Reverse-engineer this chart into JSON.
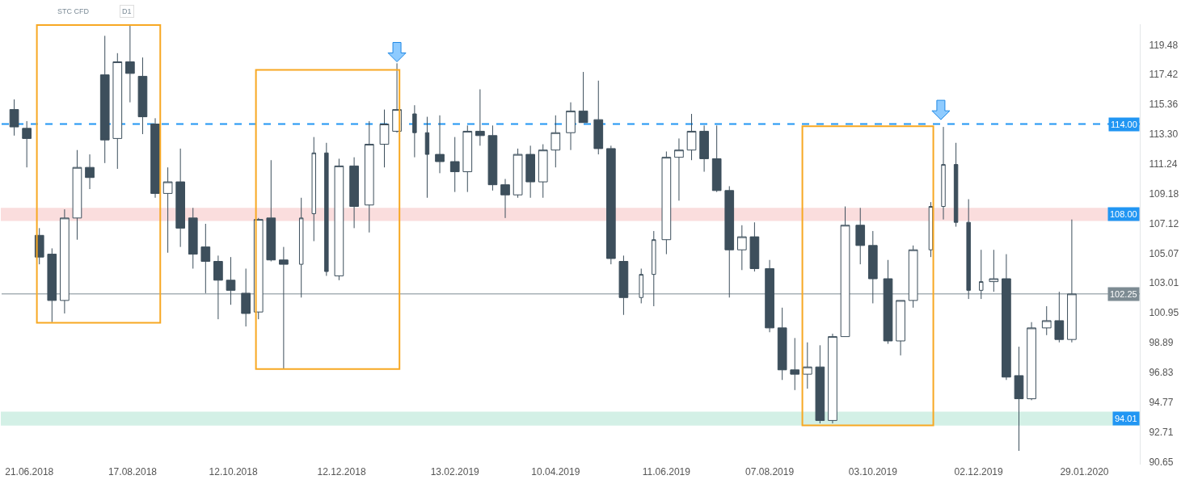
{
  "chart_data": {
    "type": "candlestick",
    "annotations": [
      "STC CFD",
      "D1"
    ],
    "color": "#3d4f5c",
    "x": [
      "2018-06-13",
      "2018-06-20",
      "2018-06-27",
      "2018-07-04",
      "2018-07-11",
      "2018-07-18",
      "2018-07-25",
      "2018-08-02",
      "2018-08-09",
      "2018-08-16",
      "2018-08-23",
      "2018-08-30",
      "2018-09-06",
      "2018-09-13",
      "2018-09-20",
      "2018-09-27",
      "2018-10-04",
      "2018-10-11",
      "2018-10-19",
      "2018-10-26",
      "2018-11-02",
      "2018-11-09",
      "2018-11-19",
      "2018-11-26",
      "2018-12-03",
      "2018-12-11",
      "2018-12-19",
      "2018-12-27",
      "2019-01-04",
      "2019-01-11",
      "2019-01-21",
      "2019-01-28",
      "2019-02-05",
      "2019-02-13",
      "2019-02-20",
      "2019-02-27",
      "2019-03-06",
      "2019-03-13",
      "2019-03-20",
      "2019-03-27",
      "2019-04-03",
      "2019-04-10",
      "2019-04-18",
      "2019-04-25",
      "2019-05-03",
      "2019-05-10",
      "2019-05-17",
      "2019-05-27",
      "2019-06-03",
      "2019-06-11",
      "2019-06-18",
      "2019-06-25",
      "2019-07-02",
      "2019-07-09",
      "2019-07-16",
      "2019-07-23",
      "2019-07-30",
      "2019-08-07",
      "2019-08-14",
      "2019-08-21",
      "2019-08-28",
      "2019-09-04",
      "2019-09-11",
      "2019-09-18",
      "2019-09-26",
      "2019-10-03",
      "2019-10-11",
      "2019-10-18",
      "2019-10-25",
      "2019-11-04",
      "2019-11-11",
      "2019-11-18",
      "2019-11-25",
      "2019-12-02",
      "2019-12-10",
      "2019-12-17",
      "2019-12-24",
      "2019-12-31",
      "2020-01-08",
      "2020-01-15",
      "2020-01-22"
    ],
    "ohlc": [
      [
        115.0,
        115.7,
        113.2,
        113.8
      ],
      [
        113.7,
        114.2,
        111.0,
        113.0
      ],
      [
        106.3,
        106.8,
        104.3,
        104.8
      ],
      [
        105.0,
        105.4,
        100.3,
        101.8
      ],
      [
        101.8,
        108.1,
        100.9,
        107.5
      ],
      [
        107.5,
        112.2,
        106.0,
        111.0
      ],
      [
        111.0,
        111.9,
        109.5,
        110.3
      ],
      [
        117.4,
        120.1,
        111.3,
        112.9
      ],
      [
        113.0,
        118.9,
        110.9,
        118.3
      ],
      [
        118.3,
        120.8,
        115.5,
        117.5
      ],
      [
        117.3,
        118.6,
        113.3,
        114.5
      ],
      [
        114.0,
        114.4,
        108.9,
        109.2
      ],
      [
        109.2,
        111.0,
        105.1,
        110.0
      ],
      [
        110.0,
        112.3,
        105.5,
        106.8
      ],
      [
        107.5,
        108.2,
        104.0,
        105.0
      ],
      [
        105.5,
        107.1,
        102.3,
        104.5
      ],
      [
        104.5,
        104.9,
        100.5,
        103.2
      ],
      [
        103.2,
        104.8,
        101.5,
        102.5
      ],
      [
        102.3,
        104.0,
        100.0,
        100.9
      ],
      [
        101.0,
        107.5,
        100.5,
        107.4
      ],
      [
        107.5,
        111.5,
        104.5,
        104.6
      ],
      [
        104.6,
        105.5,
        97.1,
        104.3
      ],
      [
        104.3,
        108.9,
        102.0,
        107.5
      ],
      [
        107.8,
        113.1,
        105.9,
        112.0
      ],
      [
        112.0,
        112.7,
        103.5,
        103.8
      ],
      [
        103.5,
        111.6,
        103.2,
        111.1
      ],
      [
        111.1,
        111.7,
        106.8,
        108.3
      ],
      [
        108.4,
        114.2,
        106.5,
        112.6
      ],
      [
        112.6,
        115.0,
        111.0,
        114.0
      ],
      [
        113.5,
        118.2,
        113.4,
        115.0
      ],
      [
        114.7,
        115.3,
        111.7,
        113.4
      ],
      [
        113.4,
        114.5,
        108.9,
        111.9
      ],
      [
        111.9,
        114.6,
        110.6,
        111.4
      ],
      [
        111.4,
        113.1,
        109.3,
        110.7
      ],
      [
        110.7,
        113.9,
        109.3,
        113.5
      ],
      [
        113.5,
        116.4,
        112.5,
        113.2
      ],
      [
        113.2,
        113.9,
        109.4,
        109.8
      ],
      [
        109.8,
        110.2,
        107.5,
        109.1
      ],
      [
        109.1,
        112.3,
        108.9,
        111.9
      ],
      [
        111.9,
        112.5,
        108.9,
        110.0
      ],
      [
        110.0,
        112.6,
        108.9,
        112.2
      ],
      [
        112.2,
        114.6,
        111.0,
        113.4
      ],
      [
        113.4,
        115.5,
        112.2,
        114.9
      ],
      [
        114.9,
        117.6,
        114.1,
        114.1
      ],
      [
        114.3,
        117.0,
        111.9,
        112.3
      ],
      [
        112.3,
        112.5,
        104.3,
        104.7
      ],
      [
        104.5,
        104.9,
        100.8,
        102.0
      ],
      [
        102.0,
        104.0,
        101.6,
        103.6
      ],
      [
        103.6,
        106.6,
        101.4,
        106.0
      ],
      [
        106.0,
        112.1,
        105.0,
        111.7
      ],
      [
        111.7,
        113.0,
        108.7,
        112.2
      ],
      [
        112.2,
        114.7,
        111.5,
        113.5
      ],
      [
        113.5,
        113.9,
        110.7,
        111.6
      ],
      [
        111.6,
        113.9,
        109.3,
        109.4
      ],
      [
        109.4,
        109.7,
        102.0,
        105.3
      ],
      [
        105.3,
        107.0,
        103.9,
        106.2
      ],
      [
        106.2,
        107.2,
        103.8,
        104.0
      ],
      [
        104.0,
        104.6,
        99.6,
        99.9
      ],
      [
        99.9,
        101.3,
        96.3,
        97.0
      ],
      [
        97.0,
        99.2,
        95.6,
        96.7
      ],
      [
        96.7,
        98.9,
        95.7,
        97.2
      ],
      [
        97.2,
        98.7,
        93.3,
        93.5
      ],
      [
        93.5,
        99.5,
        93.3,
        99.3
      ],
      [
        99.3,
        108.3,
        99.3,
        107.0
      ],
      [
        107.0,
        108.2,
        104.3,
        105.6
      ],
      [
        105.6,
        106.6,
        101.6,
        103.3
      ],
      [
        103.3,
        104.6,
        98.8,
        99.0
      ],
      [
        99.0,
        101.8,
        98.0,
        101.8
      ],
      [
        101.8,
        105.6,
        101.3,
        105.3
      ],
      [
        105.3,
        108.6,
        104.8,
        108.3
      ],
      [
        108.3,
        113.8,
        107.4,
        111.2
      ],
      [
        111.2,
        112.7,
        106.9,
        107.2
      ],
      [
        107.2,
        108.8,
        101.9,
        102.5
      ],
      [
        102.5,
        105.3,
        101.9,
        103.1
      ],
      [
        103.1,
        105.3,
        102.4,
        103.3
      ],
      [
        103.3,
        105.0,
        96.3,
        96.5
      ],
      [
        96.6,
        98.6,
        91.4,
        95.0
      ],
      [
        95.0,
        100.3,
        94.9,
        99.9
      ],
      [
        99.9,
        101.4,
        99.4,
        100.4
      ],
      [
        100.4,
        102.4,
        98.9,
        99.1
      ],
      [
        99.1,
        107.4,
        98.9,
        102.25
      ]
    ],
    "xlim": [
      "2018-06-06",
      "2020-02-28"
    ],
    "xticks": [
      {
        "value": "2018-06-21",
        "label": "21.06.2018"
      },
      {
        "value": "2018-08-17",
        "label": "17.08.2018"
      },
      {
        "value": "2018-10-12",
        "label": "12.10.2018"
      },
      {
        "value": "2018-12-12",
        "label": "12.12.2018"
      },
      {
        "value": "2019-02-13",
        "label": "13.02.2019"
      },
      {
        "value": "2019-04-10",
        "label": "10.04.2019"
      },
      {
        "value": "2019-06-11",
        "label": "11.06.2019"
      },
      {
        "value": "2019-08-07",
        "label": "07.08.2019"
      },
      {
        "value": "2019-10-03",
        "label": "03.10.2019"
      },
      {
        "value": "2019-12-02",
        "label": "02.12.2019"
      },
      {
        "value": "2020-01-29",
        "label": "29.01.2020"
      }
    ],
    "ylim": [
      90.45,
      120.9
    ],
    "yticks": [
      90.65,
      92.71,
      94.77,
      96.83,
      98.89,
      100.95,
      103.01,
      105.07,
      107.12,
      109.18,
      111.24,
      {
        "value": 113.3,
        "label": "113.30"
      },
      115.36,
      117.42,
      119.48
    ],
    "ref_lines": [
      {
        "axis": "y",
        "value": 114.0,
        "label": "114.00",
        "color": "#2196f3",
        "line_style": "dashed"
      },
      {
        "axis": "y",
        "value": 102.25,
        "label": "102.25",
        "color": "#7d8b93",
        "line_style": "solid"
      }
    ],
    "bands": [
      {
        "axis": "y",
        "from": 107.35,
        "to": 108.15,
        "label": "108.00",
        "color": "#f4b4b4"
      },
      {
        "axis": "y",
        "from": 93.2,
        "to": 94.05,
        "label": "94.01",
        "color": "#9fe0c8"
      }
    ]
  }
}
